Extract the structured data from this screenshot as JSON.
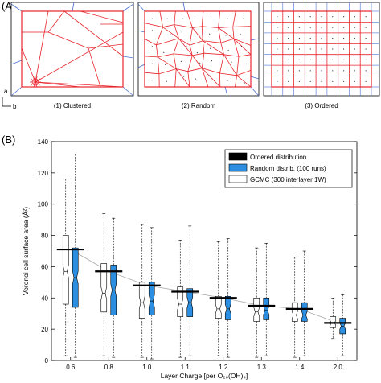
{
  "panel_a": {
    "label": "(A)",
    "axis_a": "a",
    "axis_b": "b",
    "sub_labels": [
      "(1) Clustered",
      "(2) Random",
      "(3) Ordered"
    ]
  },
  "panel_b": {
    "label": "(B)"
  },
  "colors": {
    "frame_red": "#e8242b",
    "voronoi_blue": "#4a6fd0",
    "ordered_black": "#000000",
    "random_blue": "#2b8ee0",
    "gcmc_white": "#ffffff",
    "median_line": "#aaaaaa"
  },
  "chart_data": {
    "type": "box",
    "ylabel": "Voronoi cell surface area (Å²)",
    "xlabel": "Layer Charge [per O₂₀(OH)₄]",
    "ylim": [
      0,
      140
    ],
    "yticks": [
      0,
      20,
      40,
      60,
      80,
      100,
      120,
      140
    ],
    "categories": [
      "0.6",
      "0.8",
      "1.0",
      "1.1",
      "1.2",
      "1.3",
      "1.4",
      "2.0"
    ],
    "legend": {
      "placement": "top-right",
      "entries": [
        "Ordered distribution",
        "Random distrib. (100 runs)",
        "GCMC (300 interlayer 1W)"
      ]
    },
    "series": [
      {
        "name": "Ordered distribution",
        "values": [
          71,
          57,
          48,
          44,
          40,
          35,
          33,
          24
        ]
      },
      {
        "name": "Random distrib. (100 runs)",
        "q1": [
          34,
          29,
          29,
          28,
          26,
          26,
          25,
          17
        ],
        "median": [
          53,
          45,
          38,
          37,
          33,
          32,
          29,
          22
        ],
        "q3": [
          72,
          61,
          50,
          46,
          41,
          40,
          37,
          27
        ],
        "whisker_low": [
          2,
          2,
          1,
          3,
          2,
          3,
          3,
          3
        ],
        "whisker_high": [
          132,
          91,
          85,
          86,
          78,
          75,
          70,
          42
        ]
      },
      {
        "name": "GCMC (300 interlayer 1W)",
        "q1": [
          36,
          31,
          27,
          28,
          27,
          25,
          25,
          21
        ],
        "median": [
          57,
          43,
          37,
          36,
          33,
          31,
          29,
          24
        ],
        "q3": [
          80,
          62,
          50,
          47,
          41,
          40,
          37,
          28
        ],
        "whisker_low": [
          3,
          3,
          2,
          2,
          3,
          2,
          2,
          14
        ],
        "whisker_high": [
          116,
          94,
          87,
          77,
          76,
          72,
          66,
          40
        ]
      }
    ]
  }
}
